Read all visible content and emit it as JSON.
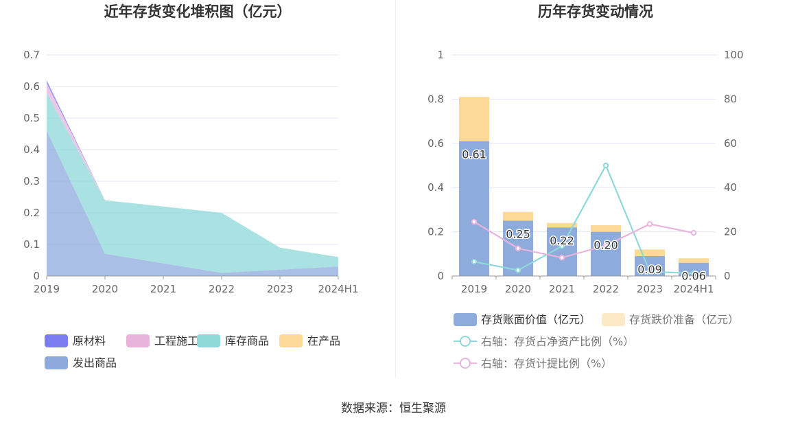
{
  "source_text": "数据来源：恒生聚源",
  "chart_data": [
    {
      "type": "area",
      "stacked": true,
      "title": "近年存货变化堆积图（亿元）",
      "x": [
        "2019",
        "2020",
        "2021",
        "2022",
        "2023",
        "2024H1"
      ],
      "ylim": [
        0,
        0.7
      ],
      "yticks": [
        "0",
        "0.1",
        "0.2",
        "0.3",
        "0.4",
        "0.5",
        "0.6",
        "0.7"
      ],
      "grid": true,
      "legend_position": "bottom",
      "series": [
        {
          "name": "原材料",
          "color": "#7b7ef0",
          "values": [
            0.01,
            0.0,
            0.0,
            0.0,
            0.0,
            0.0
          ]
        },
        {
          "name": "工程施工",
          "color": "#e8b4dc",
          "values": [
            0.03,
            0.0,
            0.0,
            0.0,
            0.0,
            0.0
          ]
        },
        {
          "name": "库存商品",
          "color": "#8ed8da",
          "values": [
            0.12,
            0.17,
            0.18,
            0.19,
            0.07,
            0.03
          ]
        },
        {
          "name": "在产品",
          "color": "#fdd998",
          "values": [
            0.0,
            0.0,
            0.0,
            0.0,
            0.0,
            0.0
          ]
        },
        {
          "name": "发出商品",
          "color": "#8ea9dc",
          "values": [
            0.46,
            0.07,
            0.04,
            0.01,
            0.02,
            0.03
          ]
        }
      ],
      "legend_order": [
        "原材料",
        "工程施工",
        "库存商品",
        "在产品",
        "发出商品"
      ],
      "draw_order": [
        "发出商品",
        "在产品",
        "库存商品",
        "工程施工",
        "原材料"
      ]
    },
    {
      "type": "bar",
      "stacked": true,
      "title": "历年存货变动情况",
      "categories": [
        "2019",
        "2020",
        "2021",
        "2022",
        "2023",
        "2024H1"
      ],
      "ylim_left": [
        0,
        1
      ],
      "yticks_left": [
        "0",
        "0.2",
        "0.4",
        "0.6",
        "0.8",
        "1"
      ],
      "ylim_right": [
        0,
        100
      ],
      "yticks_right": [
        "0",
        "20",
        "40",
        "60",
        "80",
        "100"
      ],
      "grid": true,
      "legend_position": "bottom",
      "bars": [
        {
          "name": "存货账面价值（亿元）",
          "color": "#8eacdb",
          "values": [
            0.61,
            0.25,
            0.22,
            0.2,
            0.09,
            0.06
          ],
          "labels": [
            "0.61",
            "0.25",
            "0.22",
            "0.20",
            "0.09",
            "0.06"
          ]
        },
        {
          "name": "存货跌价准备（亿元）",
          "color": "#fdd998",
          "values": [
            0.2,
            0.04,
            0.02,
            0.03,
            0.03,
            0.02
          ]
        }
      ],
      "lines": [
        {
          "name": "右轴：存货占净资产比例（%）",
          "color": "#8ed8da",
          "axis": "right",
          "values": [
            6.5,
            2.6,
            13.5,
            50.0,
            2.0,
            1.2
          ]
        },
        {
          "name": "右轴：存货计提比例（%）",
          "color": "#e8b4dc",
          "axis": "right",
          "values": [
            24.5,
            12.5,
            8.3,
            13.8,
            23.5,
            19.5
          ]
        }
      ]
    }
  ]
}
